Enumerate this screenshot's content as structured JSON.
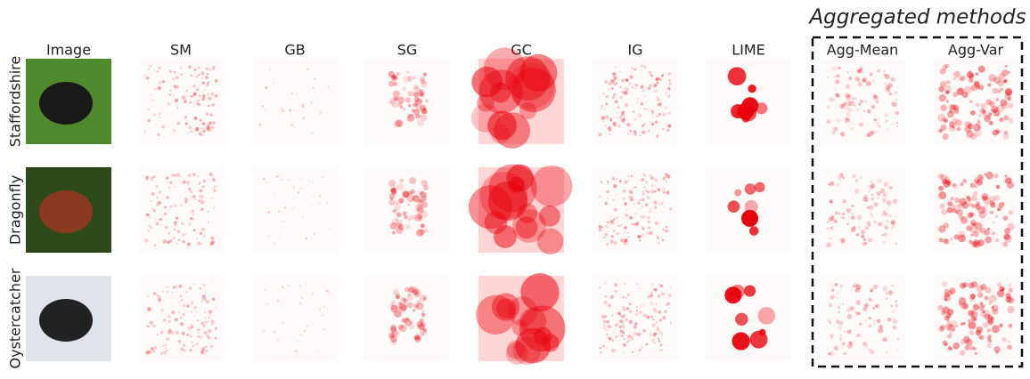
{
  "figure": {
    "group_label": "Aggregated methods",
    "columns": [
      "Image",
      "SM",
      "GB",
      "SG",
      "GC",
      "IG",
      "LIME",
      "Agg-Mean",
      "Agg-Var"
    ],
    "rows": [
      "Staffordshire",
      "Dragonfly",
      "Oystercatcher"
    ]
  }
}
